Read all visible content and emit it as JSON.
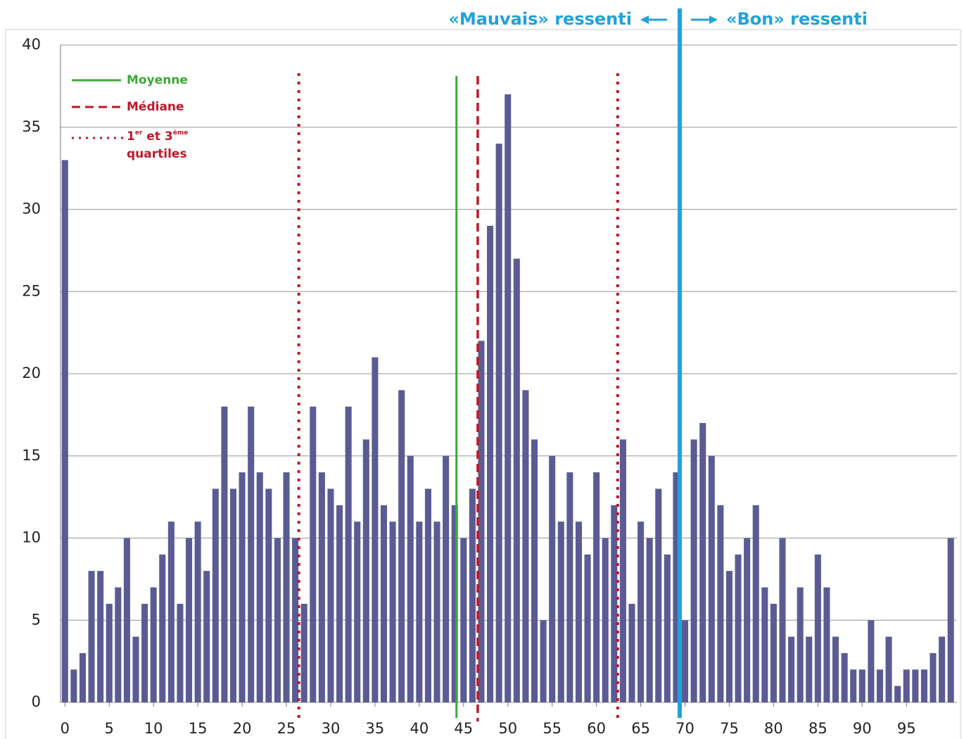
{
  "chart_data": {
    "type": "bar",
    "x": [
      0,
      1,
      2,
      3,
      4,
      5,
      6,
      7,
      8,
      9,
      10,
      11,
      12,
      13,
      14,
      15,
      16,
      17,
      18,
      19,
      20,
      21,
      22,
      23,
      24,
      25,
      26,
      27,
      28,
      29,
      30,
      31,
      32,
      33,
      34,
      35,
      36,
      37,
      38,
      39,
      40,
      41,
      42,
      43,
      44,
      45,
      46,
      47,
      48,
      49,
      50,
      51,
      52,
      53,
      54,
      55,
      56,
      57,
      58,
      59,
      60,
      61,
      62,
      63,
      64,
      65,
      66,
      67,
      68,
      69,
      70,
      71,
      72,
      73,
      74,
      75,
      76,
      77,
      78,
      79,
      80,
      81,
      82,
      83,
      84,
      85,
      86,
      87,
      88,
      89,
      90,
      91,
      92,
      93,
      94,
      95,
      96,
      97,
      98,
      99,
      100
    ],
    "values": [
      33,
      2,
      3,
      8,
      8,
      6,
      7,
      10,
      4,
      6,
      7,
      9,
      11,
      6,
      10,
      11,
      8,
      13,
      18,
      13,
      14,
      18,
      14,
      13,
      10,
      14,
      10,
      6,
      18,
      14,
      13,
      12,
      18,
      11,
      16,
      21,
      12,
      11,
      19,
      15,
      11,
      13,
      11,
      15,
      12,
      10,
      13,
      22,
      29,
      34,
      37,
      27,
      19,
      16,
      5,
      15,
      11,
      14,
      11,
      9,
      14,
      10,
      12,
      16,
      6,
      11,
      10,
      13,
      9,
      14,
      5,
      16,
      17,
      15,
      12,
      8,
      9,
      10,
      12,
      7,
      6,
      10,
      4,
      7,
      4,
      9,
      7,
      4,
      3,
      2,
      2,
      5,
      2,
      4,
      1,
      2,
      2,
      2,
      3,
      4,
      10
    ],
    "color": "#5b5b94",
    "xlim": [
      -0.5,
      100.7
    ],
    "xticks": [
      0,
      5,
      10,
      15,
      20,
      25,
      30,
      35,
      40,
      45,
      50,
      55,
      60,
      65,
      70,
      75,
      80,
      85,
      90,
      95
    ],
    "ylim": [
      0,
      40
    ],
    "yticks": [
      0,
      5,
      10,
      15,
      20,
      25,
      30,
      35,
      40
    ],
    "grid": true,
    "mean": {
      "label": "Moyenne",
      "value": 44.2,
      "color": "#3aaa35"
    },
    "median": {
      "label": "Médiane",
      "value": 46.6,
      "color": "#c0182a"
    },
    "quartiles": {
      "label_parts": [
        "1",
        "er",
        " et 3",
        "ème",
        "quartiles"
      ],
      "values": [
        26.4,
        62.4
      ],
      "color": "#c0182a"
    },
    "threshold": {
      "value": 69.4,
      "color": "#1fa3dc",
      "left_label": "«Mauvais» ressenti",
      "right_label": "«Bon» ressenti"
    }
  }
}
